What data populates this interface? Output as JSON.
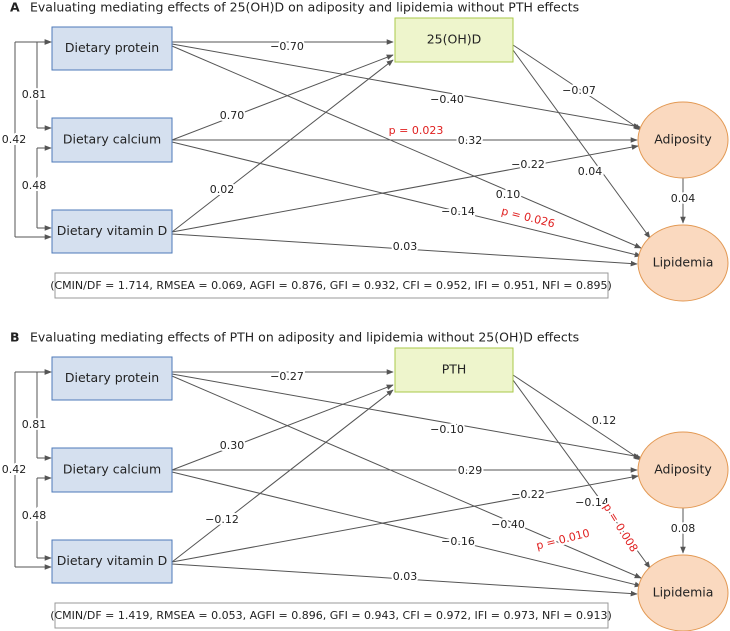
{
  "panels": [
    {
      "label": "A",
      "title": "Evaluating mediating effects of 25(OH)D on adiposity and lipidemia without PTH effects",
      "nodes": [
        "Dietary protein",
        "Dietary calcium",
        "Dietary vitamin D",
        "25(OH)D",
        "Adiposity",
        "Lipidemia"
      ],
      "correlations": [
        "0.81",
        "0.48",
        "0.42"
      ],
      "paths": [
        "−0.70",
        "−0.40",
        "0.10",
        "0.70",
        "0.32",
        "−0.14",
        "0.02",
        "−0.22",
        "0.03",
        "−0.07",
        "0.04",
        "0.04"
      ],
      "p_values": [
        "p = 0.023",
        "p = 0.026"
      ],
      "fit": "(CMIN/DF = 1.714, RMSEA = 0.069, AGFI = 0.876, GFI = 0.932, CFI = 0.952, IFI = 0.951, NFI = 0.895)"
    },
    {
      "label": "B",
      "title": "Evaluating mediating effects of PTH on adiposity and lipidemia without 25(OH)D effects",
      "nodes": [
        "Dietary protein",
        "Dietary calcium",
        "Dietary vitamin D",
        "PTH",
        "Adiposity",
        "Lipidemia"
      ],
      "correlations": [
        "0.81",
        "0.48",
        "0.42"
      ],
      "paths": [
        "−0.27",
        "−0.10",
        "−0.40",
        "0.30",
        "0.29",
        "−0.16",
        "−0.12",
        "−0.22",
        "0.03",
        "0.12",
        "−0.14",
        "0.08"
      ],
      "p_values": [
        "p = 0.010",
        "p = 0.008"
      ],
      "fit": "(CMIN/DF = 1.419, RMSEA = 0.053, AGFI = 0.896, GFI = 0.943, CFI = 0.972, IFI = 0.973, NFI = 0.913)"
    }
  ]
}
